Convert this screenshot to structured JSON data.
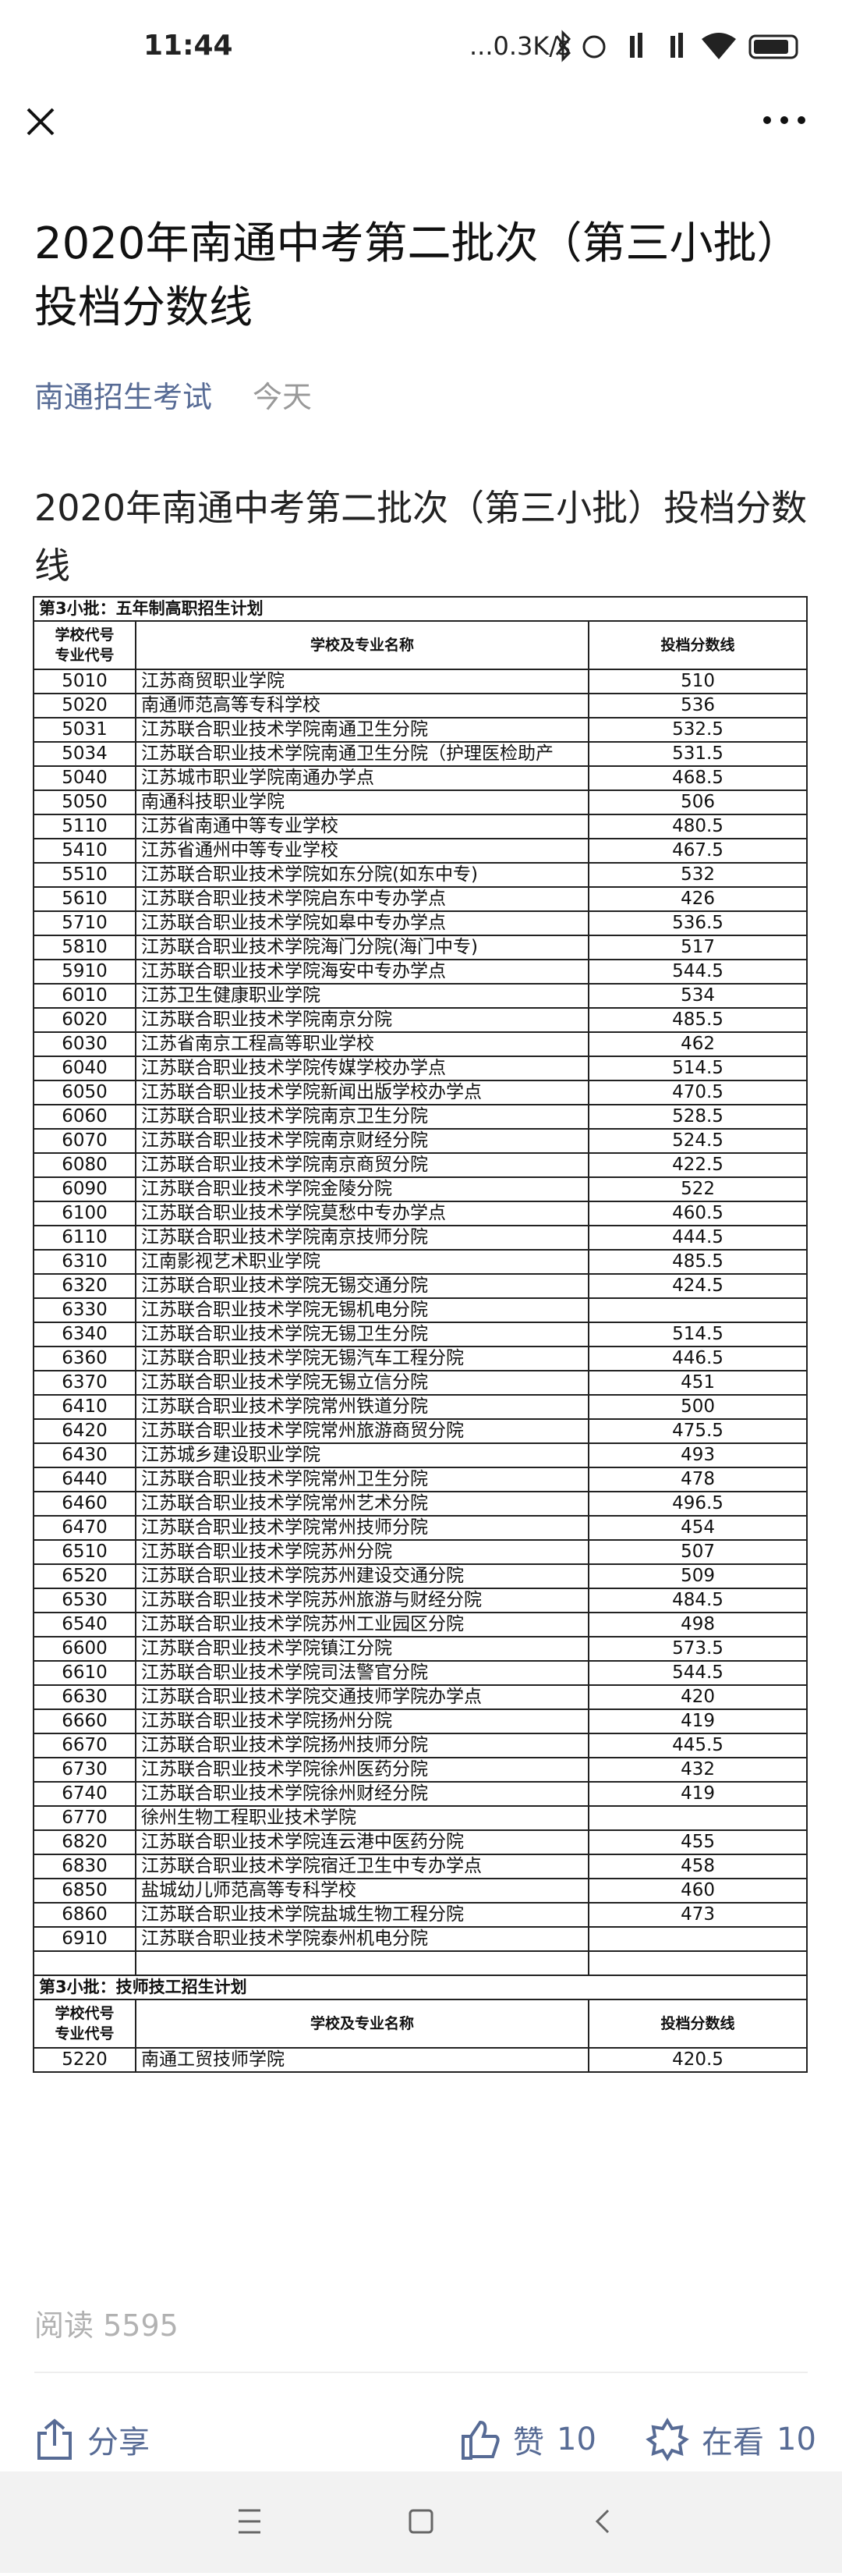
{
  "status_bar": {
    "time": "11:44",
    "network": "...0.3K/s"
  },
  "article": {
    "title": "2020年南通中考第二批次（第三小批）投档分数线",
    "account": "南通招生考试",
    "date": "今天",
    "paragraph": "2020年南通中考第二批次（第三小批）投档分数线"
  },
  "table": {
    "section1": {
      "title": "第3小批：五年制高职招生计划",
      "headers": [
        "学校代号\n专业代号",
        "学校及专业名称",
        "投档分数线"
      ],
      "rows": [
        [
          "5010",
          "江苏商贸职业学院",
          "510"
        ],
        [
          "5020",
          "南通师范高等专科学校",
          "536"
        ],
        [
          "5031",
          "江苏联合职业技术学院南通卫生分院",
          "532.5"
        ],
        [
          "5034",
          "江苏联合职业技术学院南通卫生分院（护理医检助产",
          "531.5"
        ],
        [
          "5040",
          "江苏城市职业学院南通办学点",
          "468.5"
        ],
        [
          "5050",
          "南通科技职业学院",
          "506"
        ],
        [
          "5110",
          "江苏省南通中等专业学校",
          "480.5"
        ],
        [
          "5410",
          "江苏省通州中等专业学校",
          "467.5"
        ],
        [
          "5510",
          "江苏联合职业技术学院如东分院(如东中专)",
          "532"
        ],
        [
          "5610",
          "江苏联合职业技术学院启东中专办学点",
          "426"
        ],
        [
          "5710",
          "江苏联合职业技术学院如皋中专办学点",
          "536.5"
        ],
        [
          "5810",
          "江苏联合职业技术学院海门分院(海门中专)",
          "517"
        ],
        [
          "5910",
          "江苏联合职业技术学院海安中专办学点",
          "544.5"
        ],
        [
          "6010",
          "江苏卫生健康职业学院",
          "534"
        ],
        [
          "6020",
          "江苏联合职业技术学院南京分院",
          "485.5"
        ],
        [
          "6030",
          "江苏省南京工程高等职业学校",
          "462"
        ],
        [
          "6040",
          "江苏联合职业技术学院传媒学校办学点",
          "514.5"
        ],
        [
          "6050",
          "江苏联合职业技术学院新闻出版学校办学点",
          "470.5"
        ],
        [
          "6060",
          "江苏联合职业技术学院南京卫生分院",
          "528.5"
        ],
        [
          "6070",
          "江苏联合职业技术学院南京财经分院",
          "524.5"
        ],
        [
          "6080",
          "江苏联合职业技术学院南京商贸分院",
          "422.5"
        ],
        [
          "6090",
          "江苏联合职业技术学院金陵分院",
          "522"
        ],
        [
          "6100",
          "江苏联合职业技术学院莫愁中专办学点",
          "460.5"
        ],
        [
          "6110",
          "江苏联合职业技术学院南京技师分院",
          "444.5"
        ],
        [
          "6310",
          "江南影视艺术职业学院",
          "485.5"
        ],
        [
          "6320",
          "江苏联合职业技术学院无锡交通分院",
          "424.5"
        ],
        [
          "6330",
          "江苏联合职业技术学院无锡机电分院"
        ],
        [
          "6340",
          "江苏联合职业技术学院无锡卫生分院",
          "514.5"
        ],
        [
          "6360",
          "江苏联合职业技术学院无锡汽车工程分院",
          "446.5"
        ],
        [
          "6370",
          "江苏联合职业技术学院无锡立信分院",
          "451"
        ],
        [
          "6410",
          "江苏联合职业技术学院常州铁道分院",
          "500"
        ],
        [
          "6420",
          "江苏联合职业技术学院常州旅游商贸分院",
          "475.5"
        ],
        [
          "6430",
          "江苏城乡建设职业学院",
          "493"
        ],
        [
          "6440",
          "江苏联合职业技术学院常州卫生分院",
          "478"
        ],
        [
          "6460",
          "江苏联合职业技术学院常州艺术分院",
          "496.5"
        ],
        [
          "6470",
          "江苏联合职业技术学院常州技师分院",
          "454"
        ],
        [
          "6510",
          "江苏联合职业技术学院苏州分院",
          "507"
        ],
        [
          "6520",
          "江苏联合职业技术学院苏州建设交通分院",
          "509"
        ],
        [
          "6530",
          "江苏联合职业技术学院苏州旅游与财经分院",
          "484.5"
        ],
        [
          "6540",
          "江苏联合职业技术学院苏州工业园区分院",
          "498"
        ],
        [
          "6600",
          "江苏联合职业技术学院镇江分院",
          "573.5"
        ],
        [
          "6610",
          "江苏联合职业技术学院司法警官分院",
          "544.5"
        ],
        [
          "6630",
          "江苏联合职业技术学院交通技师学院办学点",
          "420"
        ],
        [
          "6660",
          "江苏联合职业技术学院扬州分院",
          "419"
        ],
        [
          "6670",
          "江苏联合职业技术学院扬州技师分院",
          "445.5"
        ],
        [
          "6730",
          "江苏联合职业技术学院徐州医药分院",
          "432"
        ],
        [
          "6740",
          "江苏联合职业技术学院徐州财经分院",
          "419"
        ],
        [
          "6770",
          "徐州生物工程职业技术学院"
        ],
        [
          "6820",
          "江苏联合职业技术学院连云港中医药分院",
          "455"
        ],
        [
          "6830",
          "江苏联合职业技术学院宿迁卫生中专办学点",
          "458"
        ],
        [
          "6850",
          "盐城幼儿师范高等专科学校",
          "460"
        ],
        [
          "6860",
          "江苏联合职业技术学院盐城生物工程分院",
          "473"
        ],
        [
          "6910",
          "江苏联合职业技术学院泰州机电分院"
        ]
      ]
    },
    "section2": {
      "title": "第3小批：技师技工招生计划",
      "headers": [
        "学校代号\n专业代号",
        "学校及专业名称",
        "投档分数线"
      ],
      "rows": [
        [
          "5220",
          "南通工贸技师学院",
          "420.5"
        ]
      ]
    }
  },
  "footer": {
    "read_label": "阅读",
    "read_count": "5595",
    "share": "分享",
    "like": "赞",
    "like_count": "10",
    "watch": "在看",
    "watch_count": "10"
  }
}
